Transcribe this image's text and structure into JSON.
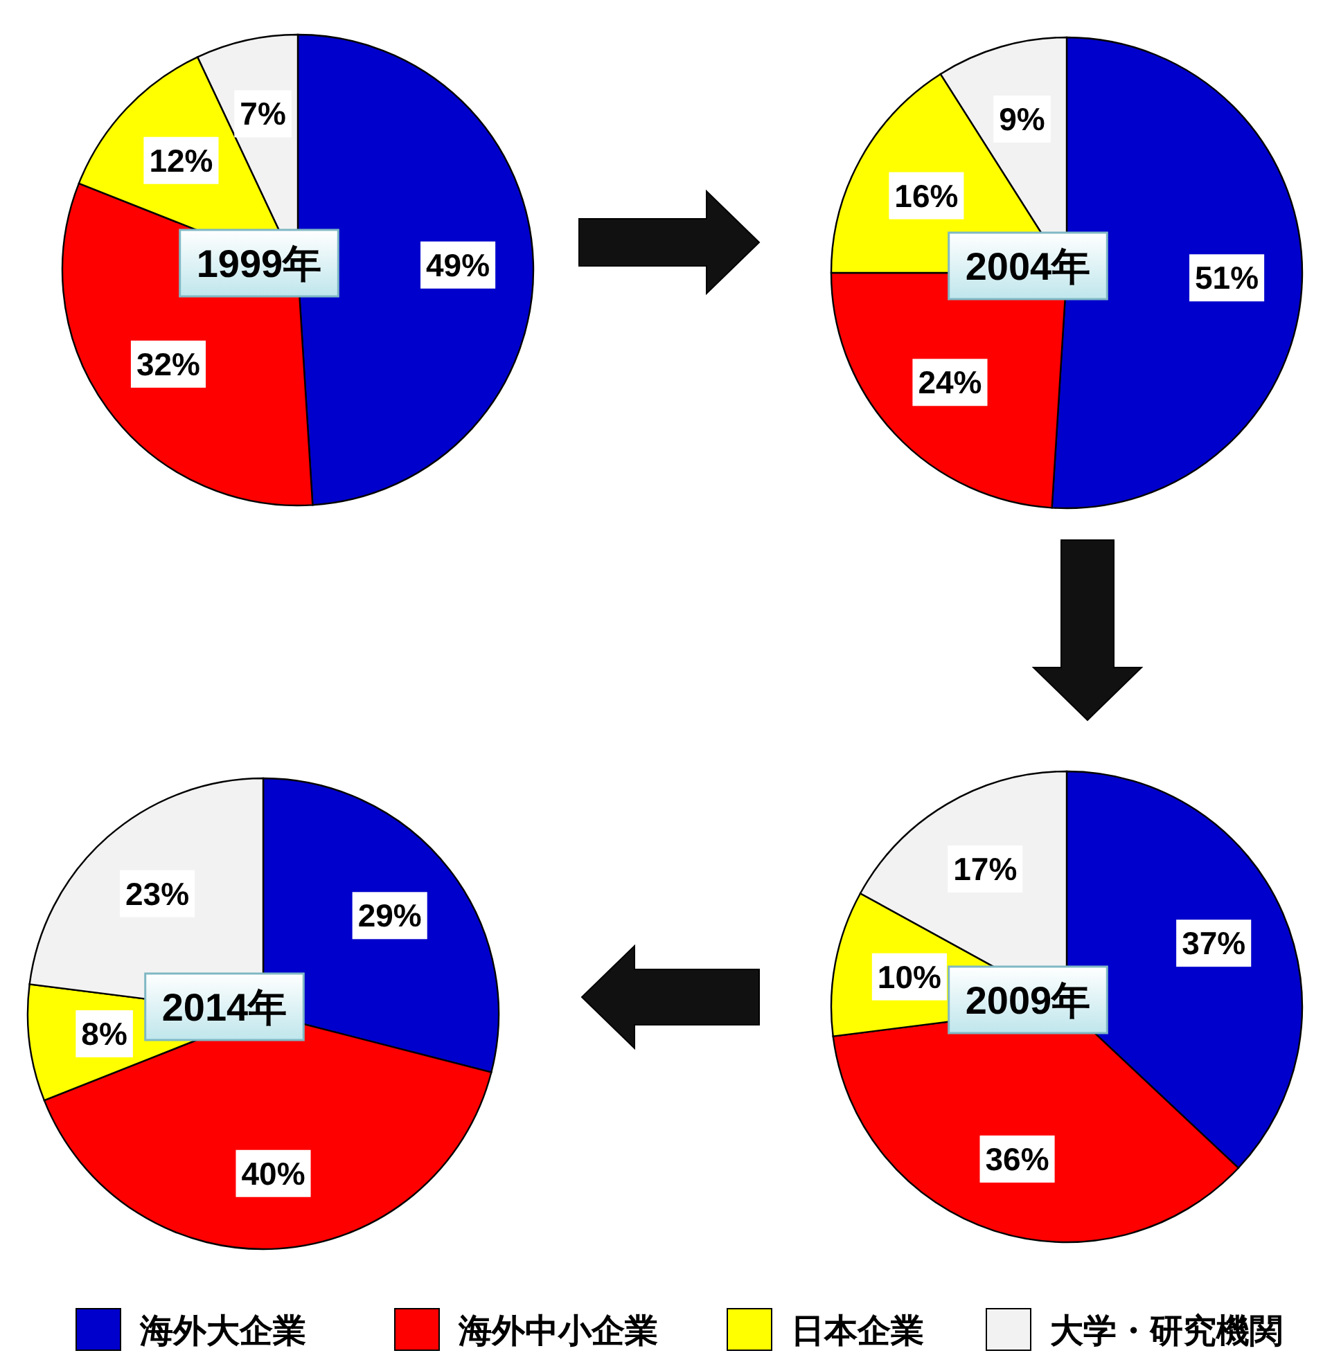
{
  "chart_data": [
    {
      "type": "pie",
      "title": "1999年",
      "categories": [
        "海外大企業",
        "海外中小企業",
        "日本企業",
        "大学・研究機関"
      ],
      "values": [
        49,
        32,
        12,
        7
      ],
      "value_labels": [
        "49%",
        "32%",
        "12%",
        "7%"
      ],
      "colors": [
        "#0000cc",
        "#ff0000",
        "#ffff00",
        "#f2f2f2"
      ],
      "legend": "bottom"
    },
    {
      "type": "pie",
      "title": "2004年",
      "values": [
        51,
        24,
        16,
        9
      ],
      "value_labels": [
        "51%",
        "24%",
        "16%",
        "9%"
      ],
      "colors": [
        "#0000cc",
        "#ff0000",
        "#ffff00",
        "#f2f2f2"
      ]
    },
    {
      "type": "pie",
      "title": "2009年",
      "values": [
        37,
        36,
        10,
        17
      ],
      "value_labels": [
        "37%",
        "36%",
        "10%",
        "17%"
      ],
      "colors": [
        "#0000cc",
        "#ff0000",
        "#ffff00",
        "#f2f2f2"
      ]
    },
    {
      "type": "pie",
      "title": "2014年",
      "values": [
        29,
        40,
        8,
        23
      ],
      "value_labels": [
        "29%",
        "40%",
        "8%",
        "23%"
      ],
      "colors": [
        "#0000cc",
        "#ff0000",
        "#ffff00",
        "#f2f2f2"
      ]
    }
  ]
}
